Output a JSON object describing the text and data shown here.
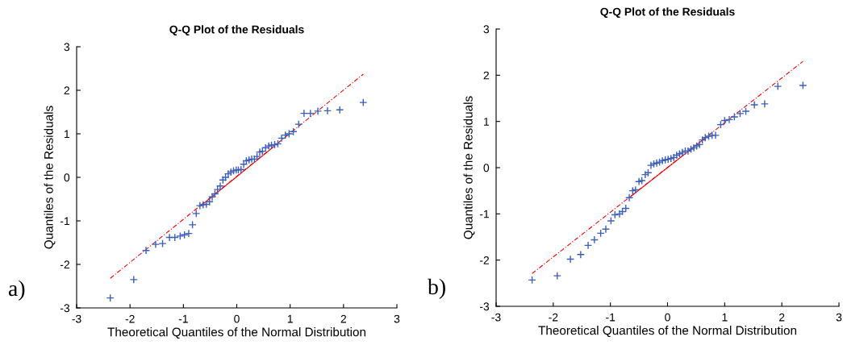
{
  "chart_data": [
    {
      "type": "scatter",
      "title": "Q-Q Plot of the Residuals",
      "xlabel": "Theoretical Quantiles of the Normal Distribution",
      "ylabel": "Quantiles of the Residuals",
      "xlim": [
        -3,
        3
      ],
      "ylim": [
        -3,
        3
      ],
      "xticks": [
        -3,
        -2,
        -1,
        0,
        1,
        2,
        3
      ],
      "yticks": [
        -3,
        -2,
        -1,
        0,
        1,
        2,
        3
      ],
      "grid": false,
      "legend": false,
      "annotations": [
        "a)"
      ],
      "series": [
        {
          "marker": "cross",
          "color": "#3a5fbf",
          "x": [
            -2.37,
            -1.93,
            -1.7,
            -1.52,
            -1.39,
            -1.26,
            -1.16,
            -1.06,
            -0.98,
            -0.9,
            -0.83,
            -0.76,
            -0.69,
            -0.63,
            -0.57,
            -0.51,
            -0.46,
            -0.41,
            -0.36,
            -0.31,
            -0.26,
            -0.21,
            -0.16,
            -0.11,
            -0.06,
            -0.01,
            0.03,
            0.08,
            0.13,
            0.18,
            0.23,
            0.28,
            0.33,
            0.38,
            0.43,
            0.48,
            0.54,
            0.6,
            0.65,
            0.71,
            0.77,
            0.84,
            0.91,
            0.98,
            1.06,
            1.16,
            1.26,
            1.38,
            1.52,
            1.7,
            1.93,
            2.37
          ],
          "values": [
            -2.77,
            -2.35,
            -1.68,
            -1.54,
            -1.52,
            -1.38,
            -1.38,
            -1.35,
            -1.32,
            -1.29,
            -1.09,
            -0.83,
            -0.65,
            -0.63,
            -0.62,
            -0.56,
            -0.45,
            -0.38,
            -0.28,
            -0.2,
            -0.06,
            0.0,
            0.08,
            0.12,
            0.15,
            0.17,
            0.17,
            0.18,
            0.3,
            0.38,
            0.4,
            0.42,
            0.42,
            0.48,
            0.58,
            0.6,
            0.68,
            0.72,
            0.74,
            0.75,
            0.77,
            0.9,
            0.97,
            1.0,
            1.05,
            1.22,
            1.47,
            1.47,
            1.52,
            1.53,
            1.55,
            1.72
          ]
        },
        {
          "type": "line",
          "color": "#ff0000",
          "line_style": "dashed",
          "x": [
            -2.37,
            2.37
          ],
          "values": [
            -2.32,
            2.37
          ]
        },
        {
          "type": "line",
          "color": "#ff0000",
          "line_style": "solid",
          "x": [
            -0.67,
            0.67
          ],
          "values": [
            -0.65,
            0.68
          ]
        }
      ]
    },
    {
      "type": "scatter",
      "title": "Q-Q Plot of the Residuals",
      "xlabel": "Theoretical Quantiles of the Normal Distribution",
      "ylabel": "Quantiles of the Residuals",
      "xlim": [
        -3,
        3
      ],
      "ylim": [
        -3,
        3
      ],
      "xticks": [
        -3,
        -2,
        -1,
        0,
        1,
        2,
        3
      ],
      "yticks": [
        -3,
        -2,
        -1,
        0,
        1,
        2,
        3
      ],
      "grid": false,
      "legend": false,
      "annotations": [
        "b)"
      ],
      "series": [
        {
          "marker": "cross",
          "color": "#3a5fbf",
          "x": [
            -2.37,
            -1.93,
            -1.7,
            -1.52,
            -1.39,
            -1.28,
            -1.17,
            -1.08,
            -0.99,
            -0.92,
            -0.84,
            -0.79,
            -0.73,
            -0.67,
            -0.61,
            -0.56,
            -0.5,
            -0.45,
            -0.39,
            -0.34,
            -0.29,
            -0.24,
            -0.19,
            -0.14,
            -0.09,
            -0.04,
            0.01,
            0.06,
            0.11,
            0.16,
            0.21,
            0.26,
            0.31,
            0.36,
            0.41,
            0.46,
            0.51,
            0.56,
            0.61,
            0.66,
            0.72,
            0.78,
            0.84,
            0.93,
            1.0,
            1.08,
            1.17,
            1.27,
            1.37,
            1.52,
            1.7,
            1.93,
            2.37
          ],
          "values": [
            -2.43,
            -2.34,
            -1.98,
            -1.88,
            -1.68,
            -1.56,
            -1.42,
            -1.33,
            -1.15,
            -1.02,
            -1.0,
            -0.95,
            -0.88,
            -0.65,
            -0.5,
            -0.48,
            -0.3,
            -0.28,
            -0.15,
            -0.11,
            0.05,
            0.08,
            0.1,
            0.12,
            0.15,
            0.17,
            0.18,
            0.2,
            0.22,
            0.27,
            0.3,
            0.33,
            0.36,
            0.36,
            0.4,
            0.43,
            0.47,
            0.5,
            0.6,
            0.65,
            0.68,
            0.7,
            0.7,
            0.93,
            1.02,
            1.04,
            1.1,
            1.17,
            1.22,
            1.36,
            1.38,
            1.76,
            1.78
          ]
        },
        {
          "type": "line",
          "color": "#ff0000",
          "line_style": "dashed",
          "x": [
            -2.37,
            2.37
          ],
          "values": [
            -2.29,
            2.3
          ]
        },
        {
          "type": "line",
          "color": "#ff0000",
          "line_style": "solid",
          "x": [
            -0.67,
            0.67
          ],
          "values": [
            -0.65,
            0.65
          ]
        }
      ]
    }
  ]
}
